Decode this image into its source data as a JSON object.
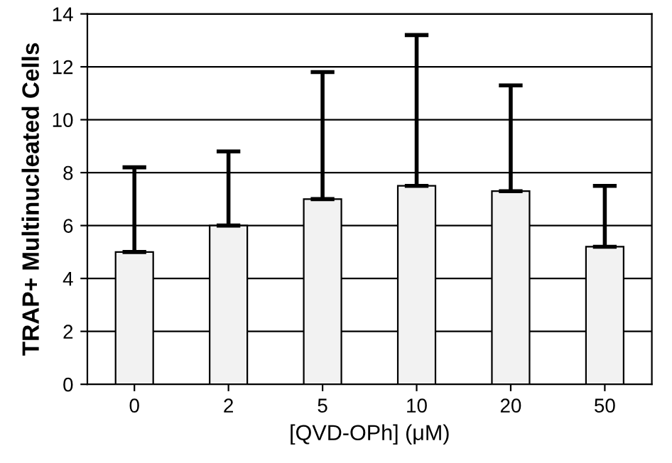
{
  "chart_data": {
    "type": "bar",
    "xlabel": "[QVD-OPh] (μM)",
    "ylabel": "TRAP+ Multinucleated Cells",
    "categories": [
      "0",
      "2",
      "5",
      "10",
      "20",
      "50"
    ],
    "values": [
      5.0,
      6.0,
      7.0,
      7.5,
      7.3,
      5.2
    ],
    "errors": [
      [
        5.0,
        8.2
      ],
      [
        6.0,
        8.8
      ],
      [
        7.0,
        11.8
      ],
      [
        7.5,
        13.2
      ],
      [
        7.3,
        11.3
      ],
      [
        5.2,
        7.5
      ]
    ],
    "color": "#f2f2f2",
    "ylim": [
      0,
      14
    ],
    "yticks": [
      0,
      2,
      4,
      6,
      8,
      10,
      12,
      14
    ],
    "grid": "y",
    "legend": false
  }
}
